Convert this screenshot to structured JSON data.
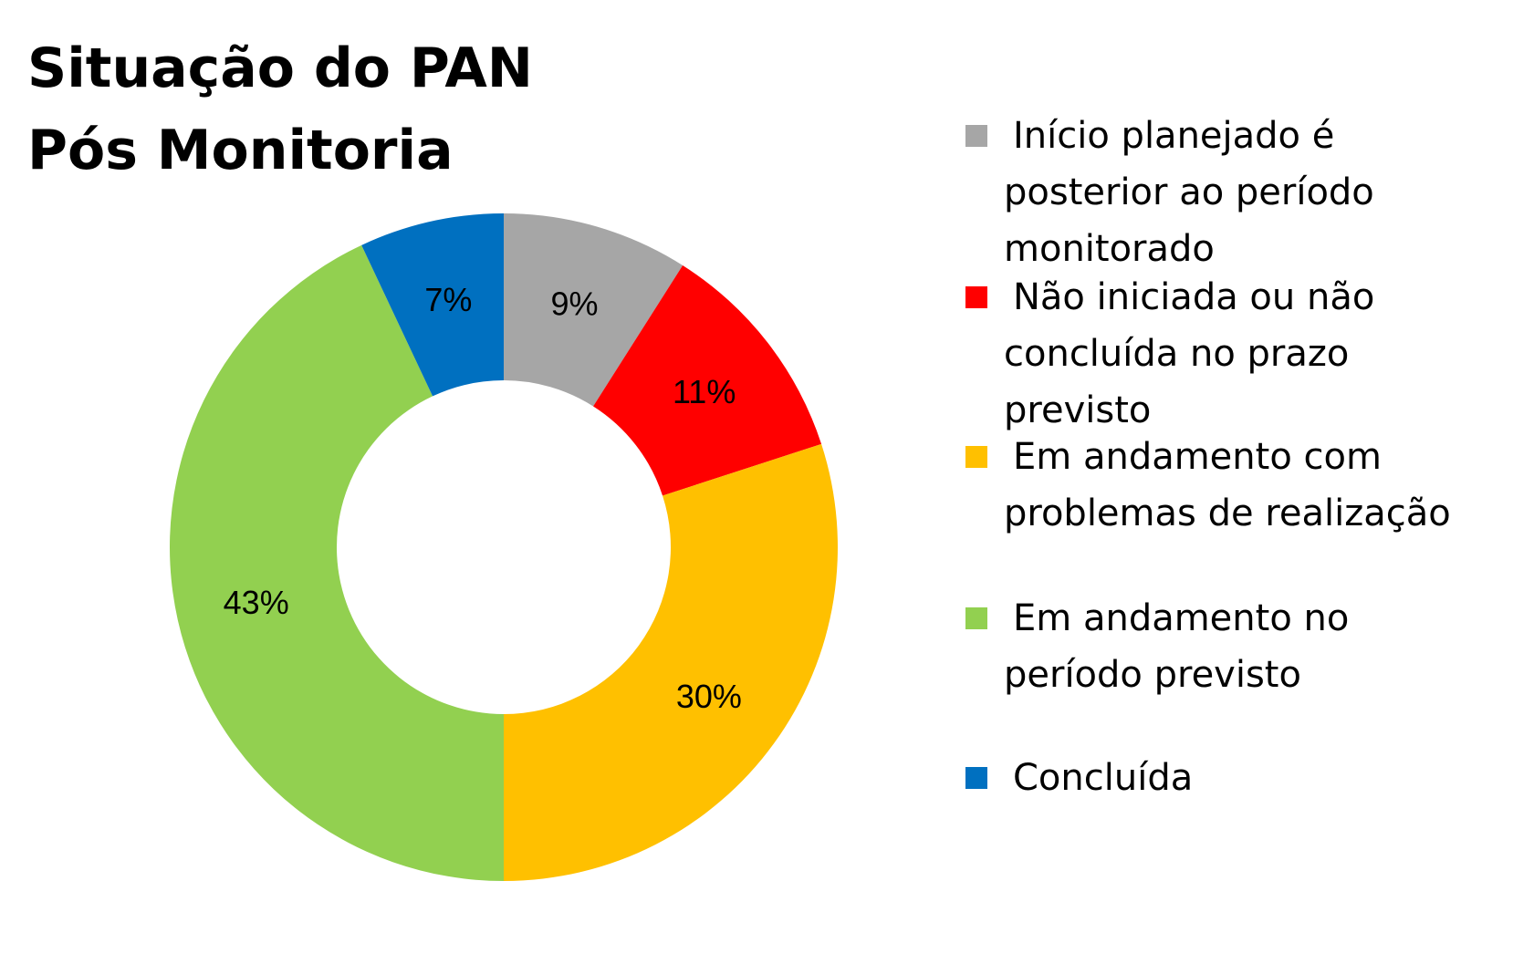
{
  "chart_data": {
    "type": "pie",
    "variant": "donut",
    "title_lines": [
      "Situação do PAN",
      "Pós Monitoria"
    ],
    "legend_position": "right",
    "slices": [
      {
        "label_lines": [
          "Início planejado é",
          "posterior ao período",
          "monitorado"
        ],
        "value": 9,
        "data_label": "9%",
        "color": "#a6a6a6"
      },
      {
        "label_lines": [
          "Não iniciada ou não",
          "concluída no prazo",
          "previsto"
        ],
        "value": 11,
        "data_label": "11%",
        "color": "#ff0000"
      },
      {
        "label_lines": [
          "Em andamento com",
          "problemas de realização"
        ],
        "value": 30,
        "data_label": "30%",
        "color": "#ffc000"
      },
      {
        "label_lines": [
          "Em andamento no",
          "período previsto"
        ],
        "value": 43,
        "data_label": "43%",
        "color": "#92d050"
      },
      {
        "label_lines": [
          "Concluída"
        ],
        "value": 7,
        "data_label": "7%",
        "color": "#0070c0"
      }
    ]
  }
}
